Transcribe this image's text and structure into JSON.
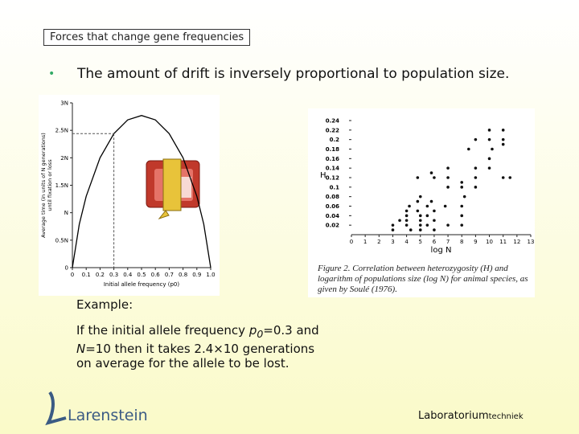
{
  "header": {
    "title": "Forces that change gene frequencies"
  },
  "bullet": "The amount of drift is inversely proportional to population size.",
  "example": {
    "heading": "Example:",
    "parts": [
      "If the initial allele frequency ",
      "p",
      "0",
      "=0.3 and ",
      "N",
      "=10 then it takes 2.4×10 generations on average for the allele to be lost."
    ]
  },
  "chart_data": [
    {
      "type": "line",
      "y_label": [
        "Average time (in units of N generations)",
        "until fixation or loss"
      ],
      "x_label": "Initial allele frequency (p0)",
      "x": [
        0,
        0.05,
        0.1,
        0.2,
        0.3,
        0.4,
        0.5,
        0.6,
        0.7,
        0.8,
        0.9,
        0.95,
        1
      ],
      "series": [
        {
          "name": "Average time",
          "color": "#000000",
          "values": [
            0,
            0.79,
            1.3,
            2.0,
            2.44,
            2.69,
            2.77,
            2.69,
            2.44,
            2.0,
            1.3,
            0.79,
            0
          ]
        }
      ],
      "highlight": {
        "x": 0.3,
        "y": 2.44
      },
      "xlim": [
        0,
        1
      ],
      "xticks": [
        0,
        0.1,
        0.2,
        0.3,
        0.4,
        0.5,
        0.6,
        0.7,
        0.8,
        0.9,
        {
          "value": 1,
          "label": "1.0"
        }
      ],
      "ylim": [
        0,
        3
      ],
      "yticks": [
        0,
        {
          "value": 0.5,
          "label": "0.5N"
        },
        {
          "value": 1,
          "label": "N"
        },
        {
          "value": 1.5,
          "label": "1.5N"
        },
        {
          "value": 2,
          "label": "2N"
        },
        {
          "value": 2.5,
          "label": "2.5N"
        },
        {
          "value": 3,
          "label": "3N"
        }
      ]
    },
    {
      "type": "scatter",
      "y_label": "H",
      "x_label": "log N",
      "caption": "Figure 2. Correlation between heterozygosity (H) and logarithm of populations size (log N) for animal species, as given by Soulé (1976).",
      "color": "#111111",
      "x": [
        3,
        3,
        3.5,
        4,
        4,
        4,
        4,
        4.2,
        4.3,
        4.8,
        4.8,
        4.8,
        5,
        5,
        5,
        5,
        5,
        5.5,
        5.5,
        5.5,
        5.8,
        5.8,
        6,
        6,
        6,
        6,
        7,
        7,
        7,
        6.8,
        7,
        8,
        8,
        8,
        8,
        8.2,
        8,
        9,
        9,
        9,
        8.5,
        9,
        10,
        10,
        10,
        10,
        10.2,
        11,
        11,
        11,
        11,
        11.5
      ],
      "values": [
        0.02,
        0.01,
        0.03,
        0.05,
        0.04,
        0.03,
        0.02,
        0.06,
        0.01,
        0.12,
        0.07,
        0.05,
        0.04,
        0.03,
        0.02,
        0.01,
        0.08,
        0.04,
        0.06,
        0.02,
        0.07,
        0.13,
        0.12,
        0.05,
        0.03,
        0.01,
        0.1,
        0.12,
        0.14,
        0.06,
        0.02,
        0.1,
        0.11,
        0.06,
        0.04,
        0.08,
        0.02,
        0.14,
        0.12,
        0.1,
        0.18,
        0.2,
        0.14,
        0.16,
        0.2,
        0.22,
        0.18,
        0.22,
        0.2,
        0.19,
        0.12,
        0.12
      ],
      "xlim": [
        0,
        13
      ],
      "xticks": [
        0,
        1,
        2,
        3,
        4,
        5,
        6,
        7,
        8,
        9,
        10,
        11,
        12,
        13
      ],
      "ylim": [
        0,
        0.24
      ],
      "yticks": [
        0.02,
        0.04,
        0.06,
        0.08,
        0.1,
        0.12,
        0.14,
        0.16,
        0.18,
        0.2,
        0.22,
        0.24
      ]
    }
  ],
  "footer": {
    "logo": "Larenstein",
    "lab": "Laboratorium",
    "lab_sub": "techniek"
  }
}
